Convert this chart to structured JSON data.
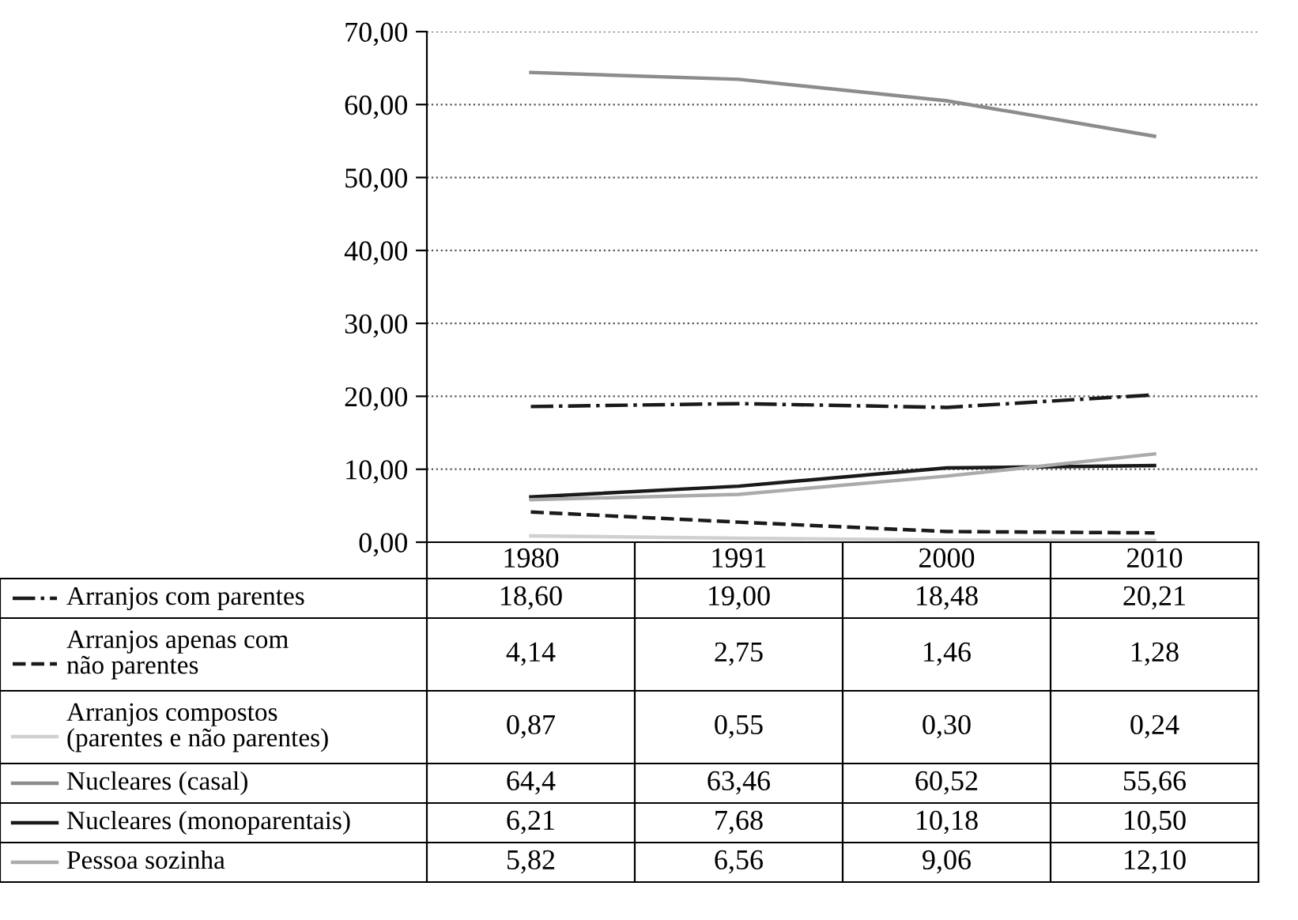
{
  "chart_data": {
    "type": "line",
    "categories": [
      "1980",
      "1991",
      "2000",
      "2010"
    ],
    "ylim": [
      0,
      70
    ],
    "yticks": [
      {
        "value": 0,
        "label": "0,00"
      },
      {
        "value": 10,
        "label": "10,00"
      },
      {
        "value": 20,
        "label": "20,00"
      },
      {
        "value": 30,
        "label": "30,00"
      },
      {
        "value": 40,
        "label": "40,00"
      },
      {
        "value": 50,
        "label": "50,00"
      },
      {
        "value": 60,
        "label": "60,00"
      },
      {
        "value": 70,
        "label": "70,00"
      }
    ],
    "grid": "y",
    "line_style": "solid",
    "legend": "bottom",
    "series": [
      {
        "name": "Arranjos com parentes",
        "color": "#1a1a1a",
        "line_style": "dashdot",
        "values": [
          18.6,
          19.0,
          18.48,
          20.21
        ],
        "value_labels": [
          "18,60",
          "19,00",
          "18,48",
          "20,21"
        ]
      },
      {
        "name": "Arranjos apenas com\nnão parentes",
        "color": "#1a1a1a",
        "line_style": "dashed",
        "values": [
          4.14,
          2.75,
          1.46,
          1.28
        ],
        "value_labels": [
          "4,14",
          "2,75",
          "1,46",
          "1,28"
        ]
      },
      {
        "name": "Arranjos compostos\n(parentes e não parentes)",
        "color": "#d0d0d0",
        "values": [
          0.87,
          0.55,
          0.3,
          0.24
        ],
        "value_labels": [
          "0,87",
          "0,55",
          "0,30",
          "0,24"
        ]
      },
      {
        "name": "Nucleares (casal)",
        "color": "#8c8c8c",
        "values": [
          64.4,
          63.46,
          60.52,
          55.66
        ],
        "value_labels": [
          "64,4",
          "63,46",
          "60,52",
          "55,66"
        ]
      },
      {
        "name": "Nucleares (monoparentais)",
        "color": "#1a1a1a",
        "values": [
          6.21,
          7.68,
          10.18,
          10.5
        ],
        "value_labels": [
          "6,21",
          "7,68",
          "10,18",
          "10,50"
        ]
      },
      {
        "name": "Pessoa sozinha",
        "color": "#ababab",
        "values": [
          5.82,
          6.56,
          9.06,
          12.1
        ],
        "value_labels": [
          "5,82",
          "6,56",
          "9,06",
          "12,10"
        ]
      }
    ]
  }
}
